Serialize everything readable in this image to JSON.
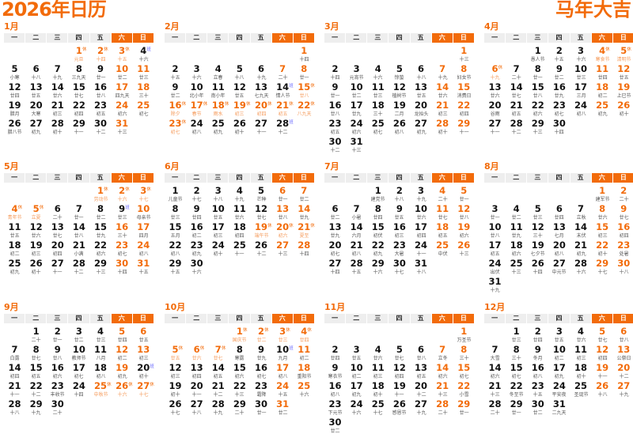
{
  "header": {
    "title": "2026年日历",
    "slogan": "马年大吉"
  },
  "year": 2026,
  "weekdays": [
    "一",
    "二",
    "三",
    "四",
    "五",
    "六",
    "日"
  ],
  "marks": {
    "rest": "休",
    "work": "班"
  },
  "colors": {
    "accent": "#f26b0a",
    "work_mark": "#6a6aff",
    "header_bg": "#eeeeee"
  },
  "months": [
    {
      "title": "1月",
      "rest": [
        1,
        2,
        3
      ],
      "work": [
        4
      ],
      "lunar": [
        "元旦",
        "十四",
        "十五",
        "十六",
        "小寒",
        "十八",
        "十九",
        "三九天",
        "廿一",
        "廿二",
        "廿三",
        "廿四",
        "廿五",
        "廿六",
        "廿七",
        "廿八",
        "四九天",
        "三十",
        "腊月",
        "大寒",
        "初三",
        "初四",
        "初五",
        "初六",
        "初七",
        "腊八节",
        "初九",
        "初十",
        "十一",
        "十二",
        "十三"
      ]
    },
    {
      "title": "2月",
      "rest": [
        15,
        16,
        17,
        18,
        19,
        20,
        21,
        22,
        23
      ],
      "work": [
        14,
        28
      ],
      "lunar": [
        "十四",
        "十五",
        "十六",
        "立春",
        "十八",
        "十九",
        "二十",
        "廿一",
        "廿二",
        "北小年",
        "南小年",
        "廿五",
        "七九天",
        "情人节",
        "廿八",
        "除夕",
        "春节",
        "雨水",
        "初三",
        "初四",
        "初五",
        "八九天",
        "初七",
        "初八",
        "初九",
        "初十",
        "十一",
        "十二"
      ]
    },
    {
      "title": "3月",
      "rest": [],
      "work": [],
      "lunar": [
        "十三",
        "十四",
        "元宵节",
        "十六",
        "惊蛰",
        "十八",
        "十九",
        "妇女节",
        "廿一",
        "廿二",
        "廿三",
        "植树节",
        "廿五",
        "廿六",
        "消费日",
        "廿八",
        "廿九",
        "三十",
        "二月",
        "龙抬头",
        "初三",
        "初四",
        "初五",
        "初六",
        "初七",
        "初八",
        "初九",
        "初十",
        "十一",
        "十二",
        "十三"
      ]
    },
    {
      "title": "4月",
      "rest": [
        4,
        5,
        6
      ],
      "work": [],
      "lunar": [
        "愚人节",
        "十五",
        "十六",
        "寒食节",
        "清明节",
        "十九",
        "二十",
        "廿一",
        "廿二",
        "廿三",
        "廿四",
        "廿五",
        "廿六",
        "廿七",
        "廿八",
        "廿九",
        "三月",
        "初二",
        "上巳节",
        "谷雨",
        "初五",
        "初六",
        "初七",
        "初八",
        "初九",
        "初十",
        "十一",
        "十二",
        "十三",
        "十四"
      ]
    },
    {
      "title": "5月",
      "rest": [
        1,
        2,
        3,
        4,
        5
      ],
      "work": [
        9
      ],
      "lunar": [
        "劳动节",
        "十六",
        "十七",
        "青年节",
        "立夏",
        "二十",
        "廿一",
        "廿二",
        "廿三",
        "母亲节",
        "廿五",
        "廿六",
        "廿七",
        "廿八",
        "廿九",
        "三十",
        "四月",
        "初二",
        "初三",
        "初四",
        "小满",
        "初六",
        "初七",
        "初八",
        "初九",
        "初十",
        "十一",
        "十二",
        "十三",
        "十四",
        "十五"
      ]
    },
    {
      "title": "6月",
      "rest": [
        19,
        20,
        21
      ],
      "work": [],
      "lunar": [
        "儿童节",
        "十七",
        "十八",
        "十九",
        "芒种",
        "廿一",
        "廿二",
        "廿三",
        "廿四",
        "廿五",
        "廿六",
        "廿七",
        "廿八",
        "廿九",
        "五月",
        "初二",
        "初三",
        "初四",
        "端午节",
        "初六",
        "夏至",
        "初八",
        "初九",
        "初十",
        "十一",
        "十二",
        "十三",
        "十四",
        "十五",
        "十六"
      ]
    },
    {
      "title": "7月",
      "rest": [],
      "work": [],
      "lunar": [
        "建党节",
        "十八",
        "十九",
        "二十",
        "廿一",
        "廿二",
        "小暑",
        "廿四",
        "廿五",
        "廿六",
        "廿七",
        "廿八",
        "廿九",
        "六月",
        "初伏",
        "初三",
        "初四",
        "初五",
        "初六",
        "初七",
        "初八",
        "初九",
        "大暑",
        "十一",
        "中伏",
        "十三",
        "十四",
        "十五",
        "十六",
        "十七",
        "十八"
      ]
    },
    {
      "title": "8月",
      "rest": [],
      "work": [],
      "lunar": [
        "建军节",
        "二十",
        "廿一",
        "廿二",
        "廿三",
        "廿四",
        "立秋",
        "廿六",
        "廿七",
        "廿八",
        "廿九",
        "三十",
        "七月",
        "末伏",
        "初三",
        "初四",
        "初五",
        "初六",
        "七夕节",
        "初八",
        "初九",
        "初十",
        "处暑",
        "出伏",
        "十三",
        "十四",
        "中元节",
        "十六",
        "十七",
        "十八",
        "十九"
      ]
    },
    {
      "title": "9月",
      "rest": [
        25,
        26,
        27
      ],
      "work": [
        20
      ],
      "lunar": [
        "二十",
        "廿一",
        "廿二",
        "廿三",
        "廿四",
        "廿五",
        "白露",
        "廿七",
        "廿八",
        "教师节",
        "八月",
        "初二",
        "初三",
        "初四",
        "初五",
        "初六",
        "初七",
        "初八",
        "初九",
        "初十",
        "十一",
        "十二",
        "丰收节",
        "十四",
        "中秋节",
        "十六",
        "十七",
        "十八",
        "十九",
        "二十"
      ]
    },
    {
      "title": "10月",
      "rest": [
        1,
        2,
        3,
        4,
        5,
        6,
        7
      ],
      "work": [
        10
      ],
      "lunar": [
        "国庆节",
        "廿二",
        "廿三",
        "廿四",
        "廿五",
        "廿六",
        "廿七",
        "寒露",
        "廿九",
        "九月",
        "初二",
        "初三",
        "初四",
        "初五",
        "初六",
        "初七",
        "初八",
        "重阳节",
        "初十",
        "十一",
        "十二",
        "十三",
        "霜降",
        "十五",
        "十六",
        "十七",
        "十八",
        "十九",
        "二十",
        "廿一",
        "廿二"
      ]
    },
    {
      "title": "11月",
      "rest": [],
      "work": [],
      "lunar": [
        "万圣节",
        "廿四",
        "廿五",
        "廿六",
        "廿七",
        "廿八",
        "立冬",
        "三十",
        "寒衣节",
        "初二",
        "初三",
        "初四",
        "初五",
        "初六",
        "初七",
        "初八",
        "初九",
        "初十",
        "十一",
        "十二",
        "十三",
        "小雪",
        "下元节",
        "十六",
        "十七",
        "感恩节",
        "十九",
        "二十",
        "廿一",
        "廿二"
      ]
    },
    {
      "title": "12月",
      "rest": [],
      "work": [],
      "lunar": [
        "廿三",
        "廿四",
        "廿五",
        "廿六",
        "廿七",
        "廿八",
        "大雪",
        "三十",
        "冬月",
        "初二",
        "初三",
        "初四",
        "公祭日",
        "初六",
        "初七",
        "初八",
        "初九",
        "初十",
        "十一",
        "十二",
        "十三",
        "冬至节",
        "十五",
        "平安夜",
        "圣诞节",
        "十八",
        "十九",
        "二十",
        "廿一",
        "廿二",
        "二九天"
      ]
    }
  ]
}
